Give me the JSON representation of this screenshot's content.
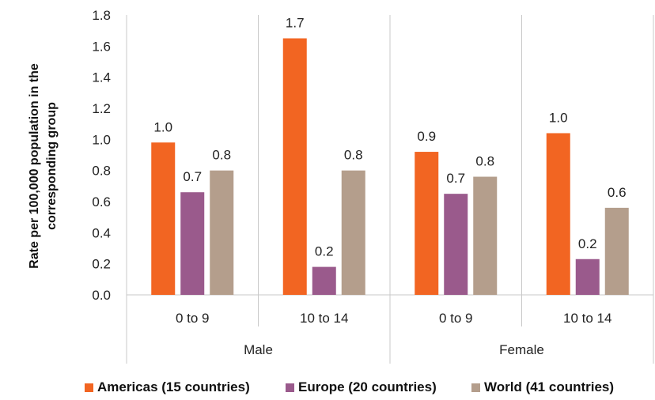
{
  "chart_data": {
    "type": "bar",
    "ylabel_lines": [
      "Rate per 100,000 population in the",
      "corresponding group"
    ],
    "ylim": [
      0,
      1.8
    ],
    "yticks": [
      "0.0",
      "0.2",
      "0.4",
      "0.6",
      "0.8",
      "1.0",
      "1.2",
      "1.4",
      "1.6",
      "1.8"
    ],
    "categories": [
      "0 to 9",
      "10 to 14",
      "0 to 9",
      "10 to 14"
    ],
    "groups": [
      {
        "label": "Male",
        "span": [
          0,
          1
        ]
      },
      {
        "label": "Female",
        "span": [
          2,
          3
        ]
      }
    ],
    "series": [
      {
        "name": "Americas (15 countries)",
        "color": "#F26522",
        "values": [
          0.98,
          1.65,
          0.92,
          1.04
        ],
        "labels": [
          "1.0",
          "1.7",
          "0.9",
          "1.0"
        ]
      },
      {
        "name": "Europe (20 countries)",
        "color": "#9A5A8C",
        "values": [
          0.66,
          0.18,
          0.65,
          0.23
        ],
        "labels": [
          "0.7",
          "0.2",
          "0.7",
          "0.2"
        ]
      },
      {
        "name": "World (41 countries)",
        "color": "#B49E8C",
        "values": [
          0.8,
          0.8,
          0.76,
          0.56
        ],
        "labels": [
          "0.8",
          "0.8",
          "0.8",
          "0.6"
        ]
      }
    ],
    "grid": false,
    "legend_position": "bottom"
  }
}
